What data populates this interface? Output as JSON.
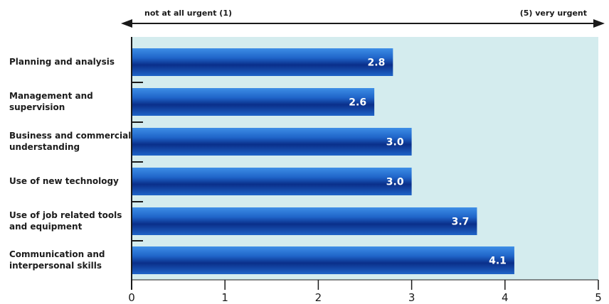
{
  "chart_data": {
    "type": "bar",
    "orientation": "horizontal",
    "categories": [
      "Planning and analysis",
      "Management and supervision",
      "Business and commercial understanding",
      "Use of new technology",
      "Use of job related tools and equipment",
      "Communication and interpersonal skills"
    ],
    "category_lines": [
      [
        "Planning and analysis"
      ],
      [
        "Management and",
        "supervision"
      ],
      [
        "Business and commercial",
        "understanding"
      ],
      [
        "Use of new technology"
      ],
      [
        "Use of job related tools",
        "and equipment"
      ],
      [
        "Communication and",
        "interpersonal skills"
      ]
    ],
    "values": [
      2.8,
      2.6,
      3.0,
      3.0,
      3.7,
      4.1
    ],
    "value_labels": [
      "2.8",
      "2.6",
      "3.0",
      "3.0",
      "3.7",
      "4.1"
    ],
    "xlim": [
      0,
      5
    ],
    "xticks": [
      "0",
      "1",
      "2",
      "3",
      "4",
      "5"
    ],
    "scale_left_label": "not at all urgent (1)",
    "scale_right_label": "(5) very urgent",
    "colors": {
      "plot_background": "#d4ecee",
      "bar_dark": "#0a2f8a",
      "bar_mid": "#1f64c8",
      "bar_light": "#3d8ee6",
      "bar_text": "#ffffff",
      "axis": "#1a1a1a"
    },
    "grid": false,
    "legend": "none"
  }
}
